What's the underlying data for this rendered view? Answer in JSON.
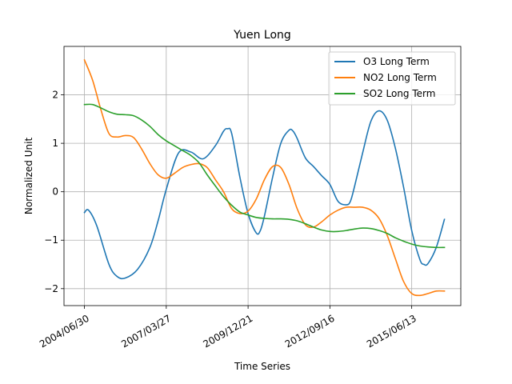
{
  "chart_data": {
    "type": "line",
    "title": "Yuen Long",
    "xlabel": "Time Series",
    "ylabel": "Normalized Unit",
    "x_tick_labels": [
      "2004/06/30",
      "2007/03/27",
      "2009/12/21",
      "2012/09/16",
      "2015/06/13"
    ],
    "x_tick_values": [
      0,
      1000,
      2000,
      3000,
      4000
    ],
    "xlim": [
      -250,
      4600
    ],
    "ylim": [
      -2.35,
      3.0
    ],
    "y_ticks": [
      -2,
      -1,
      0,
      1,
      2
    ],
    "y_tick_labels": [
      "−2",
      "−1",
      "0",
      "1",
      "2"
    ],
    "grid": true,
    "legend_position": "top-right",
    "series": [
      {
        "name": "O3 Long Term",
        "color": "#1f77b4",
        "x": [
          0,
          50,
          150,
          300,
          400,
          500,
          650,
          800,
          900,
          1000,
          1150,
          1300,
          1450,
          1600,
          1700,
          1750,
          1800,
          1900,
          2000,
          2100,
          2150,
          2200,
          2300,
          2400,
          2500,
          2550,
          2600,
          2700,
          2800,
          2900,
          3000,
          3100,
          3200,
          3250,
          3300,
          3400,
          3500,
          3600,
          3700,
          3800,
          3900,
          4000,
          4100,
          4150,
          4200,
          4300,
          4400
        ],
        "y": [
          -0.43,
          -0.38,
          -0.7,
          -1.5,
          -1.75,
          -1.78,
          -1.6,
          -1.15,
          -0.6,
          0.05,
          0.8,
          0.82,
          0.68,
          0.95,
          1.25,
          1.3,
          1.2,
          0.3,
          -0.45,
          -0.85,
          -0.8,
          -0.5,
          0.3,
          1.0,
          1.27,
          1.25,
          1.1,
          0.7,
          0.52,
          0.33,
          0.15,
          -0.2,
          -0.27,
          -0.2,
          0.1,
          0.8,
          1.45,
          1.67,
          1.48,
          0.9,
          0.1,
          -0.8,
          -1.4,
          -1.5,
          -1.48,
          -1.15,
          -0.57
        ]
      },
      {
        "name": "NO2 Long Term",
        "color": "#ff7f0e",
        "x": [
          0,
          100,
          200,
          300,
          400,
          500,
          600,
          700,
          800,
          900,
          1000,
          1100,
          1200,
          1300,
          1400,
          1500,
          1600,
          1700,
          1800,
          1900,
          2000,
          2100,
          2200,
          2300,
          2400,
          2500,
          2600,
          2700,
          2800,
          2900,
          3000,
          3100,
          3200,
          3300,
          3400,
          3500,
          3600,
          3700,
          3800,
          3900,
          4000,
          4100,
          4200,
          4300,
          4400
        ],
        "y": [
          2.72,
          2.3,
          1.7,
          1.2,
          1.13,
          1.16,
          1.12,
          0.88,
          0.58,
          0.35,
          0.28,
          0.38,
          0.5,
          0.56,
          0.58,
          0.5,
          0.25,
          0.0,
          -0.35,
          -0.45,
          -0.4,
          -0.15,
          0.25,
          0.52,
          0.5,
          0.15,
          -0.35,
          -0.68,
          -0.73,
          -0.62,
          -0.48,
          -0.38,
          -0.32,
          -0.32,
          -0.32,
          -0.38,
          -0.55,
          -0.9,
          -1.38,
          -1.85,
          -2.1,
          -2.14,
          -2.1,
          -2.05,
          -2.05
        ]
      },
      {
        "name": "SO2 Long Term",
        "color": "#2ca02c",
        "x": [
          0,
          100,
          200,
          300,
          400,
          500,
          600,
          700,
          800,
          900,
          1000,
          1100,
          1200,
          1300,
          1400,
          1500,
          1600,
          1700,
          1800,
          1900,
          2000,
          2100,
          2200,
          2300,
          2400,
          2500,
          2600,
          2700,
          2800,
          2900,
          3000,
          3100,
          3200,
          3300,
          3400,
          3500,
          3600,
          3700,
          3800,
          3900,
          4000,
          4100,
          4200,
          4300,
          4400
        ],
        "y": [
          1.8,
          1.8,
          1.73,
          1.65,
          1.6,
          1.59,
          1.57,
          1.48,
          1.35,
          1.18,
          1.05,
          0.95,
          0.85,
          0.75,
          0.6,
          0.35,
          0.12,
          -0.1,
          -0.28,
          -0.42,
          -0.48,
          -0.53,
          -0.55,
          -0.56,
          -0.56,
          -0.57,
          -0.6,
          -0.66,
          -0.73,
          -0.79,
          -0.82,
          -0.82,
          -0.8,
          -0.77,
          -0.75,
          -0.76,
          -0.8,
          -0.86,
          -0.95,
          -1.02,
          -1.08,
          -1.12,
          -1.14,
          -1.15,
          -1.15
        ]
      }
    ]
  }
}
